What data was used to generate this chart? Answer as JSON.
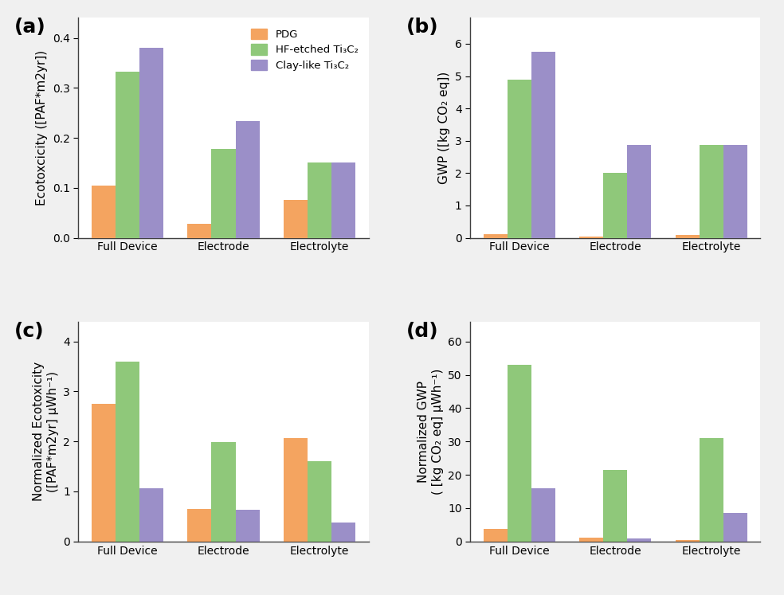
{
  "categories": [
    "Full Device",
    "Electrode",
    "Electrolyte"
  ],
  "colors": {
    "PDG": "#F4A460",
    "HF": "#8FC87A",
    "Clay": "#9B8FC8"
  },
  "legend_labels": [
    "PDG",
    "HF-etched Ti₃C₂",
    "Clay-like Ti₃C₂"
  ],
  "panel_a": {
    "title": "(a)",
    "ylabel": "Ecotoxcicity ([PAF*m2yr])",
    "ylim": [
      0,
      0.44
    ],
    "yticks": [
      0.0,
      0.1,
      0.2,
      0.3,
      0.4
    ],
    "PDG": [
      0.105,
      0.028,
      0.076
    ],
    "HF": [
      0.333,
      0.178,
      0.15
    ],
    "Clay": [
      0.38,
      0.234,
      0.15
    ]
  },
  "panel_b": {
    "title": "(b)",
    "ylabel": "GWP ([kg CO₂ eq])",
    "ylim": [
      0,
      6.8
    ],
    "yticks": [
      0,
      1,
      2,
      3,
      4,
      5,
      6
    ],
    "PDG": [
      0.12,
      0.04,
      0.1
    ],
    "HF": [
      4.9,
      2.0,
      2.88
    ],
    "Clay": [
      5.75,
      2.88,
      2.88
    ]
  },
  "panel_c": {
    "title": "(c)",
    "ylabel": "Normalized Ecotoxicity\n([PAF*m2yr] μWh⁻¹)",
    "ylim": [
      0,
      4.4
    ],
    "yticks": [
      0,
      1,
      2,
      3,
      4
    ],
    "PDG": [
      2.75,
      0.65,
      2.07
    ],
    "HF": [
      3.6,
      1.98,
      1.6
    ],
    "Clay": [
      1.07,
      0.63,
      0.38
    ]
  },
  "panel_d": {
    "title": "(d)",
    "ylabel": "Normalized GWP\n( [kg CO₂ eq] μWh⁻¹)",
    "ylim": [
      0,
      66
    ],
    "yticks": [
      0,
      10,
      20,
      30,
      40,
      50,
      60
    ],
    "PDG": [
      3.8,
      1.2,
      0.5
    ],
    "HF": [
      53.0,
      21.5,
      31.0
    ],
    "Clay": [
      16.0,
      1.0,
      8.5
    ]
  },
  "bar_width": 0.25,
  "label_fontsize": 11,
  "tick_fontsize": 10,
  "panel_label_fontsize": 18,
  "fig_bg": "#f0f0f0"
}
